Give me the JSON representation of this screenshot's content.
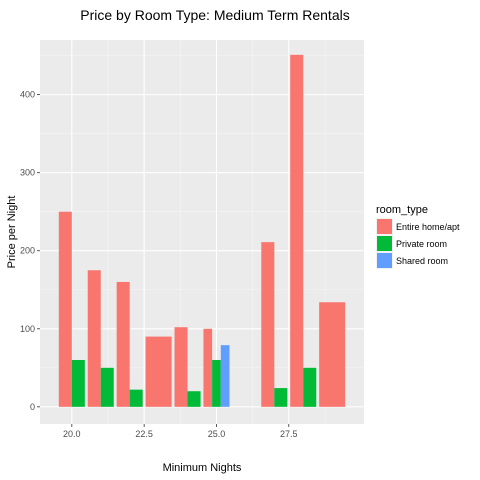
{
  "chart_data": {
    "type": "bar",
    "title": "Price by Room Type: Medium Term Rentals",
    "xlabel": "Minimum Nights",
    "ylabel": "Price per Night",
    "xlim": [
      18.9,
      30.1
    ],
    "ylim": [
      -22,
      470
    ],
    "x_ticks": [
      20.0,
      22.5,
      25.0,
      27.5
    ],
    "x_tick_labels": [
      "20.0",
      "22.5",
      "25.0",
      "27.5"
    ],
    "y_ticks": [
      0,
      100,
      200,
      300,
      400
    ],
    "y_tick_labels": [
      "0",
      "100",
      "200",
      "300",
      "400"
    ],
    "grid": true,
    "legend": {
      "title": "room_type",
      "position": "right",
      "entries": [
        {
          "label": "Entire home/apt",
          "color": "#F8766D"
        },
        {
          "label": "Private room",
          "color": "#00BA38"
        },
        {
          "label": "Shared room",
          "color": "#619CFF"
        }
      ]
    },
    "bar_width_units": 0.9,
    "bars": [
      {
        "x": 20,
        "series": "Entire home/apt",
        "value": 250,
        "group_size": 2,
        "slot": 0
      },
      {
        "x": 20,
        "series": "Private room",
        "value": 60,
        "group_size": 2,
        "slot": 1
      },
      {
        "x": 21,
        "series": "Entire home/apt",
        "value": 175,
        "group_size": 2,
        "slot": 0
      },
      {
        "x": 21,
        "series": "Private room",
        "value": 50,
        "group_size": 2,
        "slot": 1
      },
      {
        "x": 22,
        "series": "Entire home/apt",
        "value": 160,
        "group_size": 2,
        "slot": 0
      },
      {
        "x": 22,
        "series": "Private room",
        "value": 22,
        "group_size": 2,
        "slot": 1
      },
      {
        "x": 23,
        "series": "Entire home/apt",
        "value": 90,
        "group_size": 1,
        "slot": 0
      },
      {
        "x": 24,
        "series": "Entire home/apt",
        "value": 102,
        "group_size": 2,
        "slot": 0
      },
      {
        "x": 24,
        "series": "Private room",
        "value": 20,
        "group_size": 2,
        "slot": 1
      },
      {
        "x": 25,
        "series": "Entire home/apt",
        "value": 100,
        "group_size": 3,
        "slot": 0
      },
      {
        "x": 25,
        "series": "Private room",
        "value": 60,
        "group_size": 3,
        "slot": 1
      },
      {
        "x": 25,
        "series": "Shared room",
        "value": 79,
        "group_size": 3,
        "slot": 2
      },
      {
        "x": 27,
        "series": "Entire home/apt",
        "value": 211,
        "group_size": 2,
        "slot": 0
      },
      {
        "x": 27,
        "series": "Private room",
        "value": 24,
        "group_size": 2,
        "slot": 1
      },
      {
        "x": 28,
        "series": "Entire home/apt",
        "value": 451,
        "group_size": 2,
        "slot": 0
      },
      {
        "x": 28,
        "series": "Private room",
        "value": 50,
        "group_size": 2,
        "slot": 1
      },
      {
        "x": 29,
        "series": "Entire home/apt",
        "value": 134,
        "group_size": 1,
        "slot": 0
      }
    ]
  }
}
